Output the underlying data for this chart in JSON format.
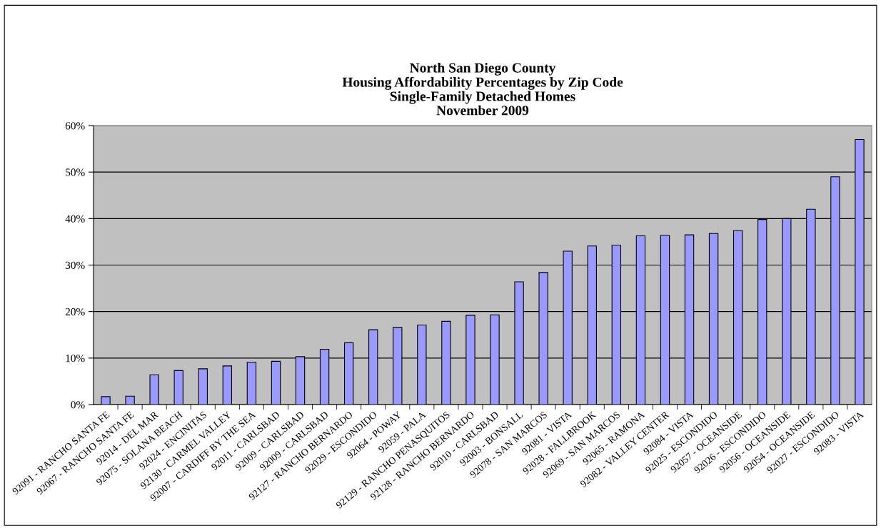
{
  "chart_data": {
    "type": "bar",
    "title": "North San Diego County\nHousing Affordability Percentages by Zip Code\nSingle-Family Detached Homes\nNovember 2009",
    "categories": [
      "92091 - RANCHO SANTA FE",
      "92067 - RANCHO SANTA FE",
      "92014 - DEL MAR",
      "92075 - SOLANA BEACH",
      "92024 - ENCINITAS",
      "92130 - CARMEL VALLEY",
      "92007 - CARDIFF BY THE SEA",
      "92011 - CARLSBAD",
      "92009 - CARLSBAD",
      "92009 - CARLSBAD",
      "92127 - RANCHO BERNARDO",
      "92029 - ESCONDIDO",
      "92064 - POWAY",
      "92059 - PALA",
      "92129 - RANCHO PENASQUITOS",
      "92128 - RANCHO BERNARDO",
      "92010 - CARLSBAD",
      "92003 - BONSALL",
      "92078 - SAN MARCOS",
      "92081 - VISTA",
      "92028 - FALLBROOK",
      "92069 - SAN MARCOS",
      "92065 - RAMONA",
      "92082 - VALLEY CENTER",
      "92084 - VISTA",
      "92025 - ESCONDIDO",
      "92057 - OCEANSIDE",
      "92026 - ESCONDIDO",
      "92056 - OCEANSIDE",
      "92054 - OCEANSIDE",
      "92027 - ESCONDIDO",
      "92083 - VISTA"
    ],
    "values": [
      1.7,
      1.8,
      6.4,
      7.3,
      7.7,
      8.3,
      9.1,
      9.3,
      10.3,
      11.9,
      13.3,
      16.1,
      16.6,
      17.1,
      17.9,
      19.2,
      19.3,
      26.4,
      28.4,
      33.0,
      34.1,
      34.3,
      36.3,
      36.4,
      36.5,
      36.8,
      37.4,
      39.8,
      40.0,
      42.0,
      49.0,
      57.0
    ],
    "color": "#9999ff",
    "ylim": [
      0,
      60
    ],
    "yticks": [
      {
        "value": 0,
        "label": "0%"
      },
      {
        "value": 10,
        "label": "10%"
      },
      {
        "value": 20,
        "label": "20%"
      },
      {
        "value": 30,
        "label": "30%"
      },
      {
        "value": 40,
        "label": "40%"
      },
      {
        "value": 50,
        "label": "50%"
      },
      {
        "value": 60,
        "label": "60%"
      }
    ],
    "grid": "y"
  }
}
